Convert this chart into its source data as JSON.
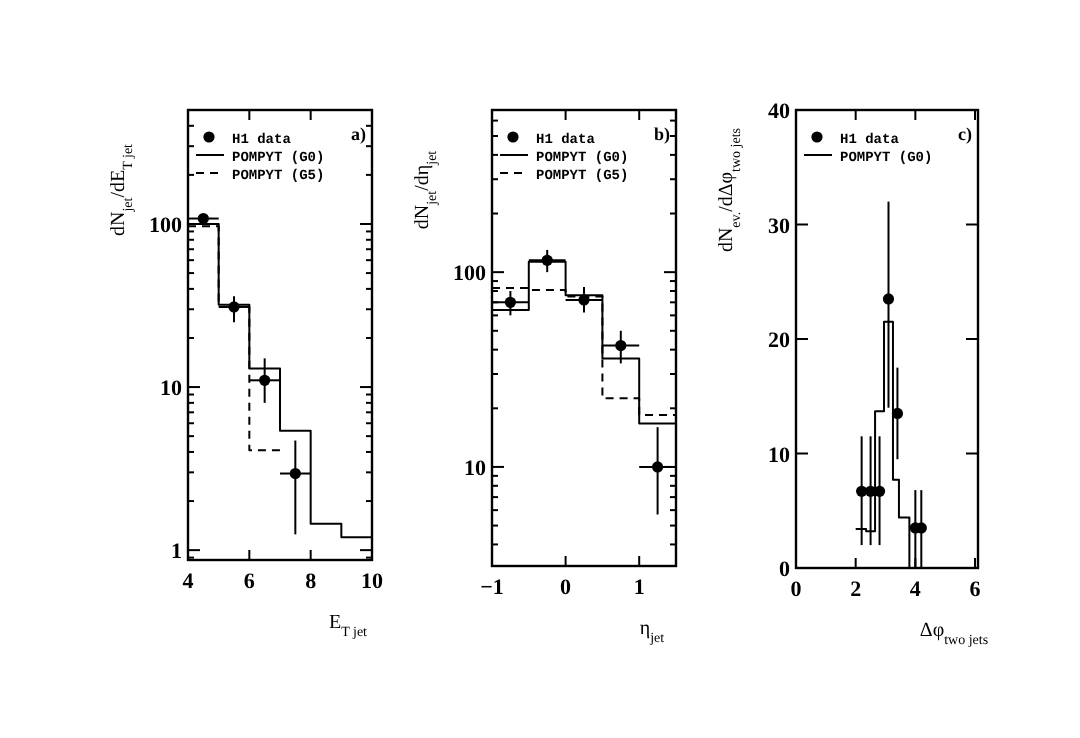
{
  "chart_data": [
    {
      "type": "step",
      "xlabel": "E$_{T jet}$",
      "ylabel": "dN$_{jet}$/dE$_{T jet}$",
      "log": "y",
      "xlim": [
        4,
        10
      ],
      "ylim": [
        0.87,
        500
      ],
      "xticks": [
        4,
        6,
        8,
        10
      ],
      "yticks": [
        1,
        10,
        100
      ],
      "legend": "top left",
      "annotations": [
        "a)"
      ],
      "series": [
        {
          "name": "H1 data",
          "type": "scatter",
          "color": "#000000",
          "marker": "circle",
          "x": [
            4.5,
            5.5,
            6.5,
            7.5
          ],
          "values": [
            108,
            31,
            11,
            2.95
          ],
          "errors": [
            [
              102,
              114
            ],
            [
              25,
              36
            ],
            [
              8,
              15
            ],
            [
              1.25,
              4.7
            ]
          ],
          "xerrors": [
            0.5,
            0.5,
            0.5,
            0.5
          ]
        },
        {
          "name": "POMPYT (G0)",
          "color": "#000000",
          "line_style": "solid",
          "x": [
            4,
            5,
            6,
            7,
            8,
            9,
            10
          ],
          "values": [
            100,
            32,
            13,
            5.4,
            1.45,
            1.2,
            1.2
          ]
        },
        {
          "name": "POMPYT (G5)",
          "color": "#000000",
          "line_style": "dashed",
          "x": [
            4,
            5,
            6,
            7
          ],
          "values": [
            97,
            31,
            4.1,
            4.1
          ]
        }
      ]
    },
    {
      "type": "step",
      "xlabel": "η$_{jet}$",
      "ylabel": "dN$_{jet}$/dη$_{jet}$",
      "log": "y",
      "xlim": [
        -1,
        1.5
      ],
      "ylim": [
        3.1,
        680
      ],
      "xticks": [
        {
          "value": -1,
          "label": "−1"
        },
        0,
        1
      ],
      "yticks": [
        10,
        100
      ],
      "legend": "top left",
      "annotations": [
        "b)"
      ],
      "series": [
        {
          "name": "H1 data",
          "type": "scatter",
          "color": "#000000",
          "marker": "circle",
          "x": [
            -0.75,
            -0.25,
            0.25,
            0.75,
            1.25
          ],
          "values": [
            70,
            115,
            72,
            42,
            10
          ],
          "errors": [
            [
              60,
              80
            ],
            [
              100,
              130
            ],
            [
              62,
              84
            ],
            [
              34,
              50
            ],
            [
              5.7,
              16
            ]
          ],
          "xerrors": [
            0.25,
            0.25,
            0.25,
            0.25,
            0.25
          ]
        },
        {
          "name": "POMPYT (G0)",
          "color": "#000000",
          "line_style": "solid",
          "x": [
            -1,
            -0.5,
            0,
            0.5,
            1,
            1.5
          ],
          "values": [
            64,
            113,
            76,
            36,
            16.7,
            16.7
          ]
        },
        {
          "name": "POMPYT (G5)",
          "color": "#000000",
          "line_style": "dashed",
          "x": [
            -1,
            -0.5,
            0,
            0.5,
            1,
            1.5
          ],
          "values": [
            83,
            81,
            75,
            22.5,
            18.5,
            18.5
          ]
        }
      ]
    },
    {
      "type": "step",
      "xlabel": "Δφ$_{two jets}$",
      "ylabel": "dN$_{ev.}$/dΔφ$_{two jets}$",
      "xlim": [
        0,
        6.1
      ],
      "ylim": [
        0,
        40
      ],
      "xticks": [
        0,
        2,
        4,
        6
      ],
      "yticks": [
        0,
        10,
        20,
        30,
        40
      ],
      "legend": "top left",
      "annotations": [
        "c)"
      ],
      "series": [
        {
          "name": "H1 data",
          "type": "scatter",
          "color": "#000000",
          "marker": "circle",
          "x": [
            2.2,
            2.5,
            2.8,
            3.1,
            3.4,
            4.0,
            4.2
          ],
          "values": [
            6.7,
            6.7,
            6.7,
            23.5,
            13.5,
            3.5,
            3.5
          ],
          "errors": [
            [
              2,
              11.5
            ],
            [
              2,
              11.5
            ],
            [
              2,
              11.5
            ],
            [
              14,
              32
            ],
            [
              9.5,
              17.5
            ],
            [
              0,
              6.8
            ],
            [
              0,
              6.8
            ]
          ],
          "xerrors": [
            0.15,
            0.15,
            0.15,
            0.15,
            0.15,
            0.15,
            0.15
          ]
        },
        {
          "name": "POMPYT (G0)",
          "color": "#000000",
          "line_style": "solid",
          "x": [
            2.0,
            2.35,
            2.65,
            2.95,
            3.25,
            3.45,
            3.8
          ],
          "values": [
            3.4,
            3.2,
            13.7,
            21.5,
            7.7,
            4.4,
            0
          ]
        }
      ]
    }
  ]
}
